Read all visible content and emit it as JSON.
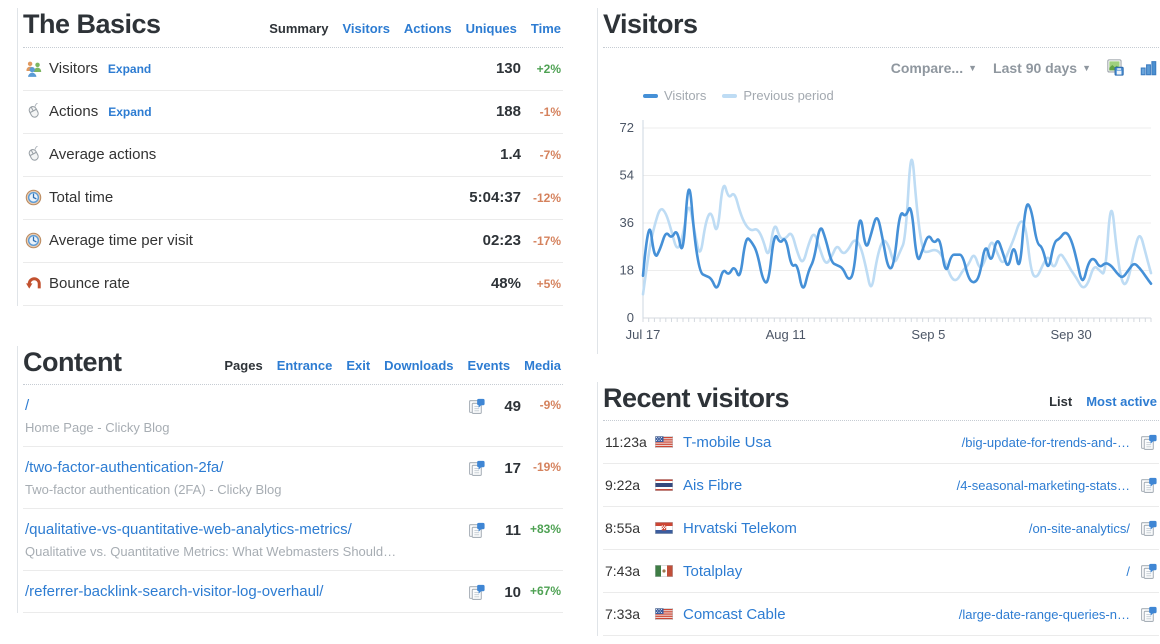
{
  "colors": {
    "link_blue": "#2d7cd2",
    "heading_dark": "#2e3338",
    "positive_green": "#4fa254",
    "negative_salmon": "#d5825d",
    "series_current": "#4590d7",
    "series_previous": "#bedcf4"
  },
  "basics": {
    "title": "The Basics",
    "tabs": [
      {
        "label": "Summary",
        "active": true
      },
      {
        "label": "Visitors",
        "active": false
      },
      {
        "label": "Actions",
        "active": false
      },
      {
        "label": "Uniques",
        "active": false
      },
      {
        "label": "Time",
        "active": false
      }
    ],
    "rows": [
      {
        "icon": "visitors-icon",
        "label": "Visitors",
        "expand": "Expand",
        "value": "130",
        "change": "+2%",
        "positive": true
      },
      {
        "icon": "mouse-icon",
        "label": "Actions",
        "expand": "Expand",
        "value": "188",
        "change": "-1%",
        "positive": false
      },
      {
        "icon": "mouse-icon",
        "label": "Average actions",
        "value": "1.4",
        "change": "-7%",
        "positive": false
      },
      {
        "icon": "clock-icon",
        "label": "Total time",
        "value": "5:04:37",
        "change": "-12%",
        "positive": false
      },
      {
        "icon": "clock-icon",
        "label": "Average time per visit",
        "value": "02:23",
        "change": "-17%",
        "positive": false
      },
      {
        "icon": "bounce-icon",
        "label": "Bounce rate",
        "value": "48%",
        "change": "+5%",
        "positive": false
      }
    ]
  },
  "content": {
    "title": "Content",
    "tabs": [
      {
        "label": "Pages",
        "active": true
      },
      {
        "label": "Entrance",
        "active": false
      },
      {
        "label": "Exit",
        "active": false
      },
      {
        "label": "Downloads",
        "active": false
      },
      {
        "label": "Events",
        "active": false
      },
      {
        "label": "Media",
        "active": false
      }
    ],
    "row_icon": "pages-icon",
    "rows": [
      {
        "url": "/",
        "subtitle": "Home Page - Clicky Blog",
        "value": "49",
        "change": "-9%",
        "positive": false
      },
      {
        "url": "/two-factor-authentication-2fa/",
        "subtitle": "Two-factor authentication (2FA) - Clicky Blog",
        "value": "17",
        "change": "-19%",
        "positive": false
      },
      {
        "url": "/qualitative-vs-quantitative-web-analytics-metrics/",
        "subtitle": "Qualitative vs. Quantitative Metrics: What Webmasters Should…",
        "value": "11",
        "change": "+83%",
        "positive": true
      },
      {
        "url": "/referrer-backlink-search-visitor-log-overhaul/",
        "subtitle": null,
        "value": "10",
        "change": "+67%",
        "positive": true
      }
    ]
  },
  "visitors_panel": {
    "title": "Visitors",
    "compare_label": "Compare...",
    "range_label": "Last 90 days",
    "icons": [
      "export-image-icon",
      "bar-chart-icon"
    ]
  },
  "chart_data": {
    "type": "line",
    "title": "Visitors",
    "xlabel": "",
    "ylabel": "",
    "ylim": [
      0,
      72
    ],
    "yticks": [
      0,
      18,
      36,
      54,
      72
    ],
    "grid": "horizontal",
    "legend_position": "top-left",
    "n_points": 90,
    "x_range": "Last 90 days",
    "x_tick_labels": [
      "Jul 17",
      "Aug 11",
      "Sep 5",
      "Sep 30"
    ],
    "x_tick_day_positions": [
      0,
      25,
      50,
      75
    ],
    "series": [
      {
        "name": "Visitors",
        "color": "#4590d7",
        "values": [
          16,
          40,
          22,
          26,
          33,
          30,
          34,
          22,
          56,
          30,
          17,
          16,
          15,
          10,
          19,
          16,
          20,
          14,
          31,
          29,
          25,
          14,
          13,
          33,
          28,
          31,
          19,
          21,
          9,
          18,
          22,
          36,
          30,
          21,
          20,
          19,
          14,
          17,
          42,
          25,
          32,
          40,
          30,
          18,
          20,
          41,
          38,
          44,
          20,
          26,
          32,
          28,
          31,
          16,
          24,
          24,
          24,
          15,
          13,
          16,
          29,
          20,
          31,
          25,
          18,
          29,
          16,
          44,
          42,
          28,
          27,
          17,
          29,
          30,
          33,
          30,
          22,
          12,
          21,
          23,
          19,
          21,
          20,
          17,
          15,
          18,
          21,
          19,
          16,
          13
        ]
      },
      {
        "name": "Previous period",
        "color": "#bedcf4",
        "values": [
          9,
          25,
          35,
          42,
          40,
          33,
          25,
          31,
          45,
          33,
          22,
          37,
          41,
          30,
          53,
          45,
          48,
          40,
          35,
          33,
          34,
          30,
          22,
          37,
          30,
          30,
          33,
          25,
          20,
          28,
          33,
          26,
          20,
          23,
          28,
          24,
          26,
          30,
          28,
          20,
          9,
          23,
          30,
          28,
          20,
          25,
          30,
          68,
          40,
          25,
          25,
          26,
          25,
          21,
          15,
          14,
          18,
          20,
          25,
          18,
          22,
          30,
          25,
          20,
          25,
          30,
          37,
          36,
          17,
          15,
          20,
          24,
          18,
          25,
          22,
          18,
          15,
          11,
          13,
          20,
          18,
          16,
          47,
          25,
          12,
          14,
          25,
          33,
          25,
          17
        ]
      }
    ]
  },
  "recent": {
    "title": "Recent visitors",
    "tabs": [
      {
        "label": "List",
        "active": true
      },
      {
        "label": "Most active",
        "active": false
      }
    ],
    "row_icon": "pages-icon",
    "rows": [
      {
        "time": "11:23a",
        "flag": "us",
        "isp": "T-mobile Usa",
        "page": "/big-update-for-trends-and-…"
      },
      {
        "time": "9:22a",
        "flag": "th",
        "isp": "Ais Fibre",
        "page": "/4-seasonal-marketing-stats…"
      },
      {
        "time": "8:55a",
        "flag": "hr",
        "isp": "Hrvatski Telekom",
        "page": "/on-site-analytics/"
      },
      {
        "time": "7:43a",
        "flag": "mx",
        "isp": "Totalplay",
        "page": "/"
      },
      {
        "time": "7:33a",
        "flag": "us",
        "isp": "Comcast Cable",
        "page": "/large-date-range-queries-n…"
      }
    ]
  }
}
